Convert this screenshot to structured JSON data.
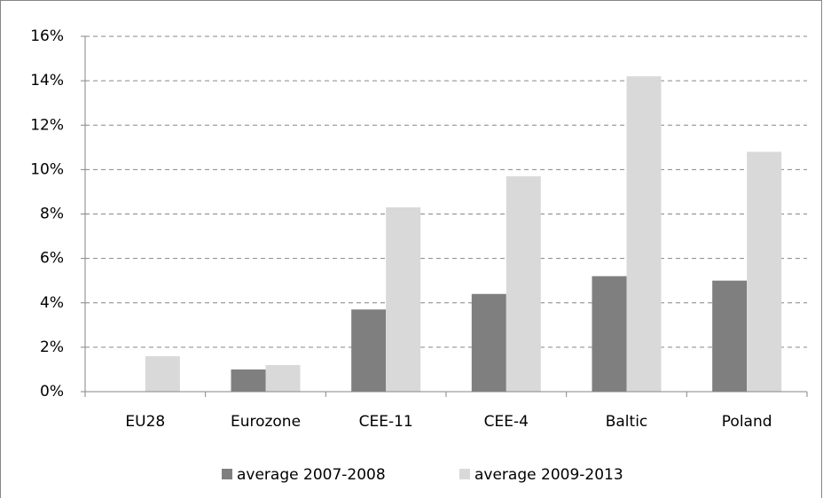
{
  "chart_data": {
    "type": "bar",
    "categories": [
      "EU28",
      "Eurozone",
      "CEE-11",
      "CEE-4",
      "Baltic",
      "Poland"
    ],
    "series": [
      {
        "name": "average 2007-2008",
        "color": "#7f7f7f",
        "values": [
          0,
          1.0,
          3.7,
          4.4,
          5.2,
          5.0
        ]
      },
      {
        "name": "average 2009-2013",
        "color": "#d9d9d9",
        "values": [
          1.6,
          1.2,
          8.3,
          9.7,
          14.2,
          10.8
        ]
      }
    ],
    "ylim": [
      0,
      16
    ],
    "yticks": [
      {
        "value": 0,
        "label": "0%"
      },
      {
        "value": 2,
        "label": "2%"
      },
      {
        "value": 4,
        "label": "4%"
      },
      {
        "value": 6,
        "label": "6%"
      },
      {
        "value": 8,
        "label": "8%"
      },
      {
        "value": 10,
        "label": "10%"
      },
      {
        "value": 12,
        "label": "12%"
      },
      {
        "value": 14,
        "label": "14%"
      },
      {
        "value": 16,
        "label": "16%"
      }
    ],
    "grid": true,
    "legend": "bottom"
  }
}
